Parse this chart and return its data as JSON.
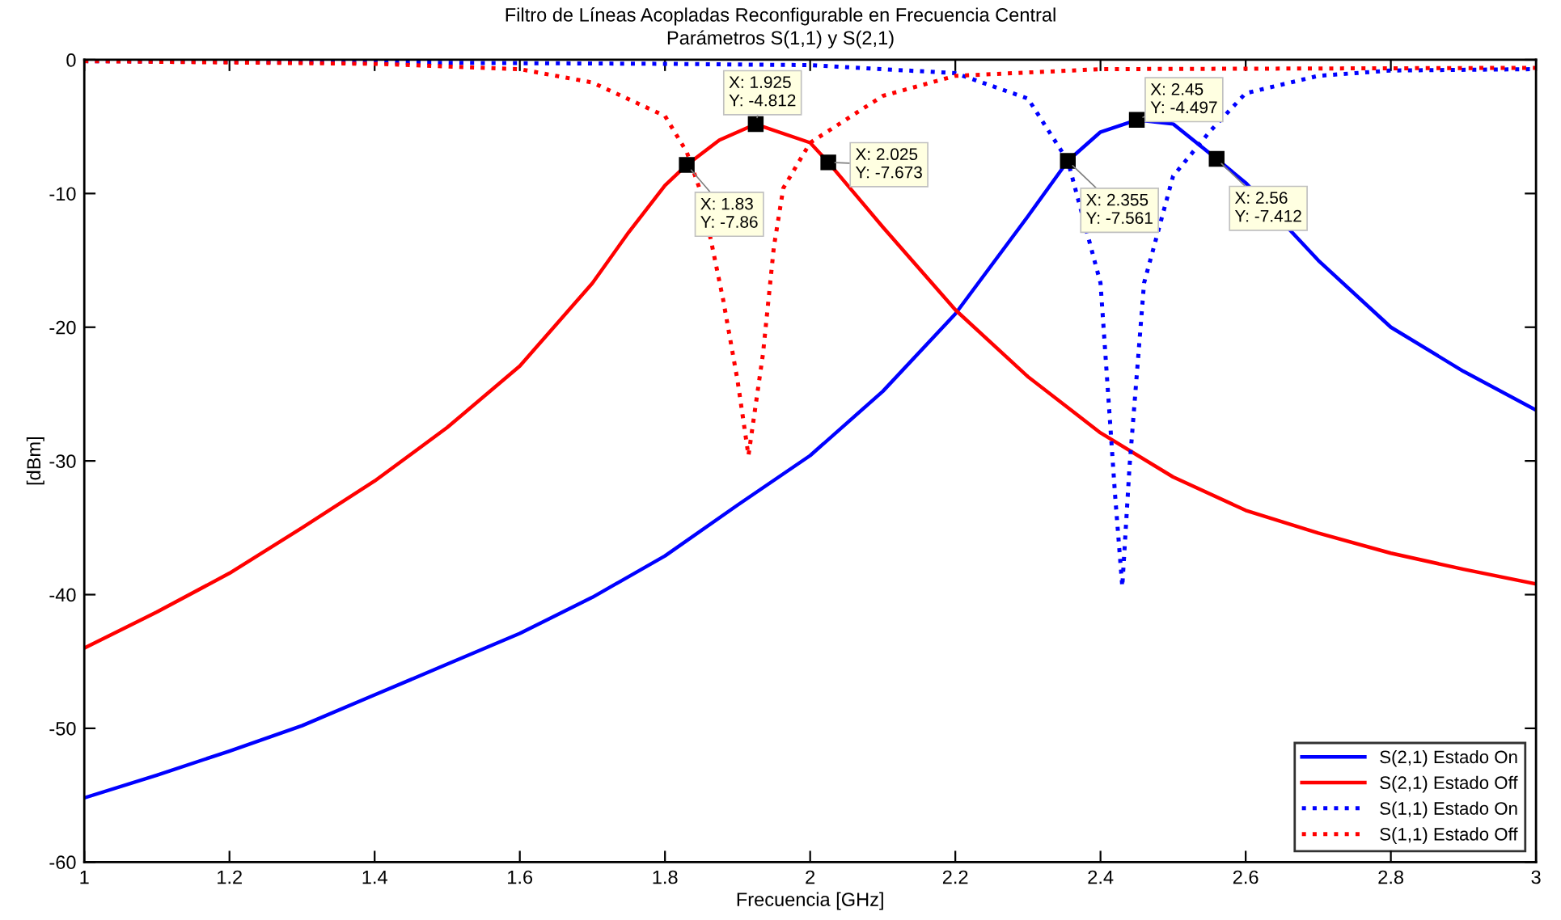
{
  "chart_data": {
    "type": "line",
    "title": "Filtro de Líneas Acopladas Reconfigurable en Frecuencia Central",
    "subtitle": "Parámetros S(1,1) y S(2,1)",
    "xlabel": "Frecuencia [GHz]",
    "ylabel": "[dBm]",
    "xlim": [
      1,
      3
    ],
    "ylim": [
      -60,
      0
    ],
    "xticks": [
      1,
      1.2,
      1.4,
      1.6,
      1.8,
      2,
      2.2,
      2.4,
      2.6,
      2.8,
      3
    ],
    "yticks": [
      -60,
      -50,
      -40,
      -30,
      -20,
      -10,
      0
    ],
    "grid": false,
    "legend": "bottom right",
    "marker": "none",
    "series": [
      {
        "name": "S(2,1) Estado On",
        "color": "#0000ff",
        "line_style": "solid",
        "x": [
          1,
          1.1,
          1.2,
          1.3,
          1.4,
          1.5,
          1.6,
          1.7,
          1.8,
          1.9,
          2.0,
          2.1,
          2.2,
          2.3,
          2.355,
          2.4,
          2.45,
          2.5,
          2.56,
          2.6,
          2.7,
          2.8,
          2.9,
          3.0
        ],
        "values": [
          -55.2,
          -53.5,
          -51.7,
          -49.8,
          -47.5,
          -45.2,
          -42.9,
          -40.2,
          -37.1,
          -33.3,
          -29.6,
          -24.8,
          -19,
          -11.7,
          -7.561,
          -5.4,
          -4.497,
          -4.8,
          -7.412,
          -9.2,
          -15,
          -20,
          -23.3,
          -26.2
        ]
      },
      {
        "name": "S(2,1) Estado Off",
        "color": "#ff0000",
        "line_style": "solid",
        "x": [
          1,
          1.1,
          1.2,
          1.3,
          1.4,
          1.5,
          1.6,
          1.7,
          1.75,
          1.8,
          1.83,
          1.875,
          1.925,
          2.0,
          2.025,
          2.1,
          2.2,
          2.3,
          2.4,
          2.5,
          2.6,
          2.7,
          2.8,
          2.9,
          3.0
        ],
        "values": [
          -44.0,
          -41.3,
          -38.4,
          -35,
          -31.5,
          -27.5,
          -22.9,
          -16.7,
          -12.9,
          -9.4,
          -7.86,
          -6.0,
          -4.812,
          -6.2,
          -7.673,
          -12.5,
          -18.7,
          -23.7,
          -27.9,
          -31.2,
          -33.7,
          -35.4,
          -36.9,
          -38.1,
          -39.2
        ]
      },
      {
        "name": "S(1,1) Estado On",
        "color": "#0000ff",
        "line_style": "dotted",
        "x": [
          1,
          1.4,
          1.8,
          2.0,
          2.2,
          2.3,
          2.355,
          2.4,
          2.42,
          2.43,
          2.44,
          2.46,
          2.5,
          2.55,
          2.6,
          2.7,
          2.8,
          3.0
        ],
        "values": [
          -0.1,
          -0.2,
          -0.3,
          -0.4,
          -1.0,
          -2.9,
          -7.561,
          -16.7,
          -32.5,
          -39.4,
          -30.4,
          -16.7,
          -8.7,
          -5.4,
          -2.5,
          -1.2,
          -0.8,
          -0.7
        ]
      },
      {
        "name": "S(1,1) Estado Off",
        "color": "#ff0000",
        "line_style": "dotted",
        "x": [
          1,
          1.4,
          1.6,
          1.7,
          1.8,
          1.83,
          1.85,
          1.88,
          1.9,
          1.915,
          1.935,
          1.95,
          1.963,
          2.0,
          2.1,
          2.2,
          2.4,
          3.0
        ],
        "values": [
          -0.1,
          -0.3,
          -0.7,
          -1.7,
          -4.2,
          -6.9,
          -10,
          -17.9,
          -24,
          -29.6,
          -22,
          -14,
          -9.6,
          -6.2,
          -2.7,
          -1.2,
          -0.7,
          -0.6
        ]
      }
    ],
    "annotations": [
      {
        "text": "X: 1.925\nY: -4.812",
        "x": 1.925,
        "y": -4.812
      },
      {
        "text": "X: 1.83\nY: -7.86",
        "x": 1.83,
        "y": -7.86
      },
      {
        "text": "X: 2.025\nY: -7.673",
        "x": 2.025,
        "y": -7.673
      },
      {
        "text": "X: 2.45\nY: -4.497",
        "x": 2.45,
        "y": -4.497
      },
      {
        "text": "X: 2.355\nY: -7.561",
        "x": 2.355,
        "y": -7.561
      },
      {
        "text": "X: 2.56\nY: -7.412",
        "x": 2.56,
        "y": -7.412
      }
    ]
  }
}
